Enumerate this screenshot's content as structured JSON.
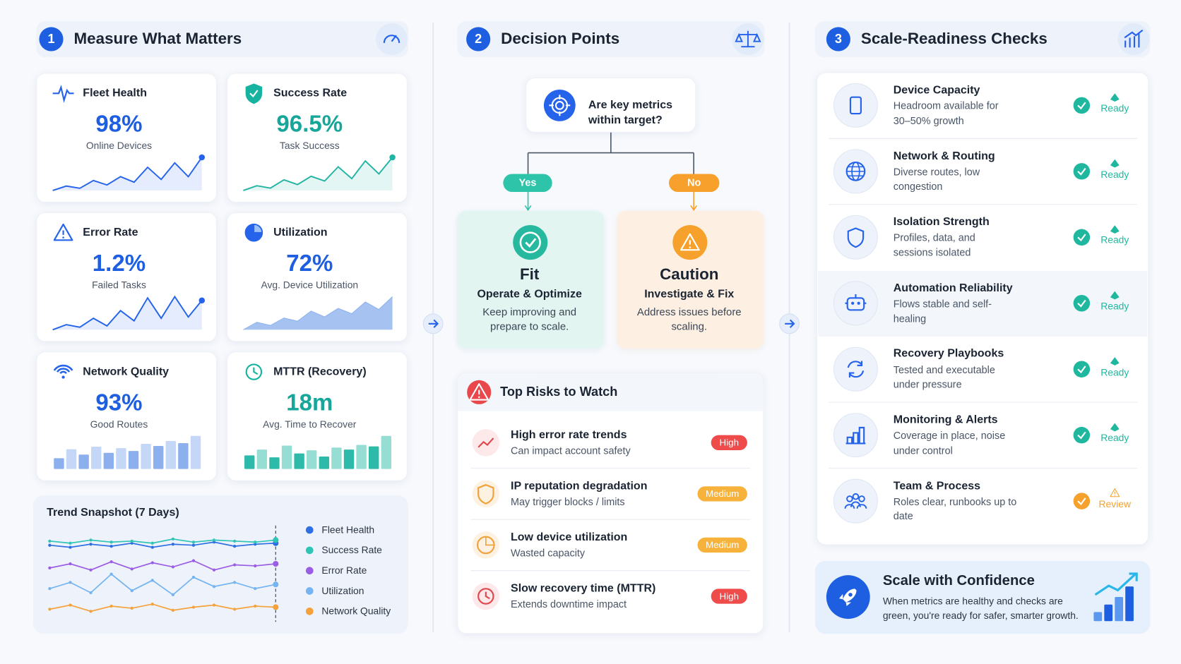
{
  "sections": [
    {
      "number": "1",
      "title": "Measure What Matters"
    },
    {
      "number": "2",
      "title": "Decision Points"
    },
    {
      "number": "3",
      "title": "Scale-Readiness Checks"
    }
  ],
  "metrics": [
    {
      "title": "Fleet Health",
      "value": "98%",
      "caption": "Online Devices",
      "color": "#1d5fe0",
      "spark": "line",
      "spark_color": "#2563eb",
      "points": [
        20,
        28,
        24,
        38,
        30,
        45,
        35,
        62,
        40,
        70,
        45,
        80
      ]
    },
    {
      "title": "Success Rate",
      "value": "96.5%",
      "caption": "Task Success",
      "color": "#17a79a",
      "spark": "line",
      "spark_color": "#22b3a3",
      "points": [
        18,
        26,
        22,
        36,
        28,
        42,
        34,
        58,
        38,
        68,
        46,
        74
      ]
    },
    {
      "title": "Error Rate",
      "value": "1.2%",
      "caption": "Failed Tasks",
      "color": "#1d5fe0",
      "spark": "line",
      "spark_color": "#2563eb",
      "points": [
        22,
        30,
        26,
        40,
        28,
        52,
        36,
        72,
        40,
        74,
        42,
        68
      ]
    },
    {
      "title": "Utilization",
      "value": "72%",
      "caption": "Avg. Device Utilization",
      "color": "#1d5fe0",
      "spark": "area",
      "spark_color": "#8fb3ee",
      "points": [
        20,
        34,
        28,
        42,
        36,
        55,
        44,
        60,
        50,
        72,
        58,
        82
      ]
    },
    {
      "title": "Network Quality",
      "value": "93%",
      "caption": "Good Routes",
      "color": "#1d5fe0",
      "spark": "bar",
      "spark_color": "#7fa6ec",
      "points": [
        30,
        55,
        40,
        62,
        45,
        58,
        50,
        70,
        64,
        78,
        72,
        92
      ]
    },
    {
      "title": "MTTR (Recovery)",
      "value": "18m",
      "caption": "Avg. Time to Recover",
      "color": "#17a79a",
      "spark": "bar",
      "spark_color": "#16b3a0",
      "points": [
        35,
        50,
        30,
        60,
        40,
        48,
        32,
        55,
        50,
        62,
        58,
        85
      ]
    }
  ],
  "trend": {
    "title": "Trend Snapshot (7 Days)",
    "series": [
      {
        "name": "Fleet Health",
        "color": "#2f6fe4",
        "values": [
          86,
          84,
          87,
          85,
          88,
          84,
          87,
          86,
          89,
          85,
          87,
          88
        ]
      },
      {
        "name": "Success Rate",
        "color": "#2ec4b6",
        "values": [
          90,
          88,
          91,
          89,
          90,
          88,
          92,
          89,
          91,
          90,
          89,
          91
        ]
      },
      {
        "name": "Error Rate",
        "color": "#9b5de5",
        "values": [
          64,
          68,
          62,
          70,
          63,
          69,
          65,
          71,
          62,
          67,
          66,
          68
        ]
      },
      {
        "name": "Utilization",
        "color": "#74b4f0",
        "values": [
          44,
          50,
          40,
          58,
          42,
          52,
          38,
          55,
          46,
          50,
          44,
          48
        ]
      },
      {
        "name": "Network Quality",
        "color": "#f6a23c",
        "values": [
          24,
          28,
          22,
          27,
          25,
          29,
          23,
          26,
          28,
          24,
          27,
          26
        ]
      }
    ]
  },
  "decision": {
    "question": "Are key metrics within target?",
    "yes": {
      "label": "Yes",
      "title": "Fit",
      "subtitle": "Operate & Optimize",
      "text": "Keep improving and prepare to scale."
    },
    "no": {
      "label": "No",
      "title": "Caution",
      "subtitle": "Investigate & Fix",
      "text": "Address issues before scaling."
    }
  },
  "risks": {
    "title": "Top Risks to Watch",
    "items": [
      {
        "title": "High error rate trends",
        "subtitle": "Can impact account safety",
        "level": "High"
      },
      {
        "title": "IP reputation degradation",
        "subtitle": "May trigger blocks / limits",
        "level": "Medium"
      },
      {
        "title": "Low device utilization",
        "subtitle": "Wasted capacity",
        "level": "Medium"
      },
      {
        "title": "Slow recovery time (MTTR)",
        "subtitle": "Extends downtime impact",
        "level": "High"
      }
    ]
  },
  "checks": [
    {
      "title": "Device Capacity",
      "description": "Headroom available for 30–50% growth",
      "status": "Ready"
    },
    {
      "title": "Network & Routing",
      "description": "Diverse routes, low congestion",
      "status": "Ready"
    },
    {
      "title": "Isolation Strength",
      "description": "Profiles, data, and sessions isolated",
      "status": "Ready"
    },
    {
      "title": "Automation Reliability",
      "description": "Flows stable and self-healing",
      "status": "Ready"
    },
    {
      "title": "Recovery Playbooks",
      "description": "Tested and executable under pressure",
      "status": "Ready"
    },
    {
      "title": "Monitoring & Alerts",
      "description": "Coverage in place, noise under control",
      "status": "Ready"
    },
    {
      "title": "Team & Process",
      "description": "Roles clear, runbooks up to date",
      "status": "Review"
    }
  ],
  "cta": {
    "title": "Scale with Confidence",
    "text": "When metrics are healthy and checks are green, you're ready for safer, smarter growth."
  }
}
